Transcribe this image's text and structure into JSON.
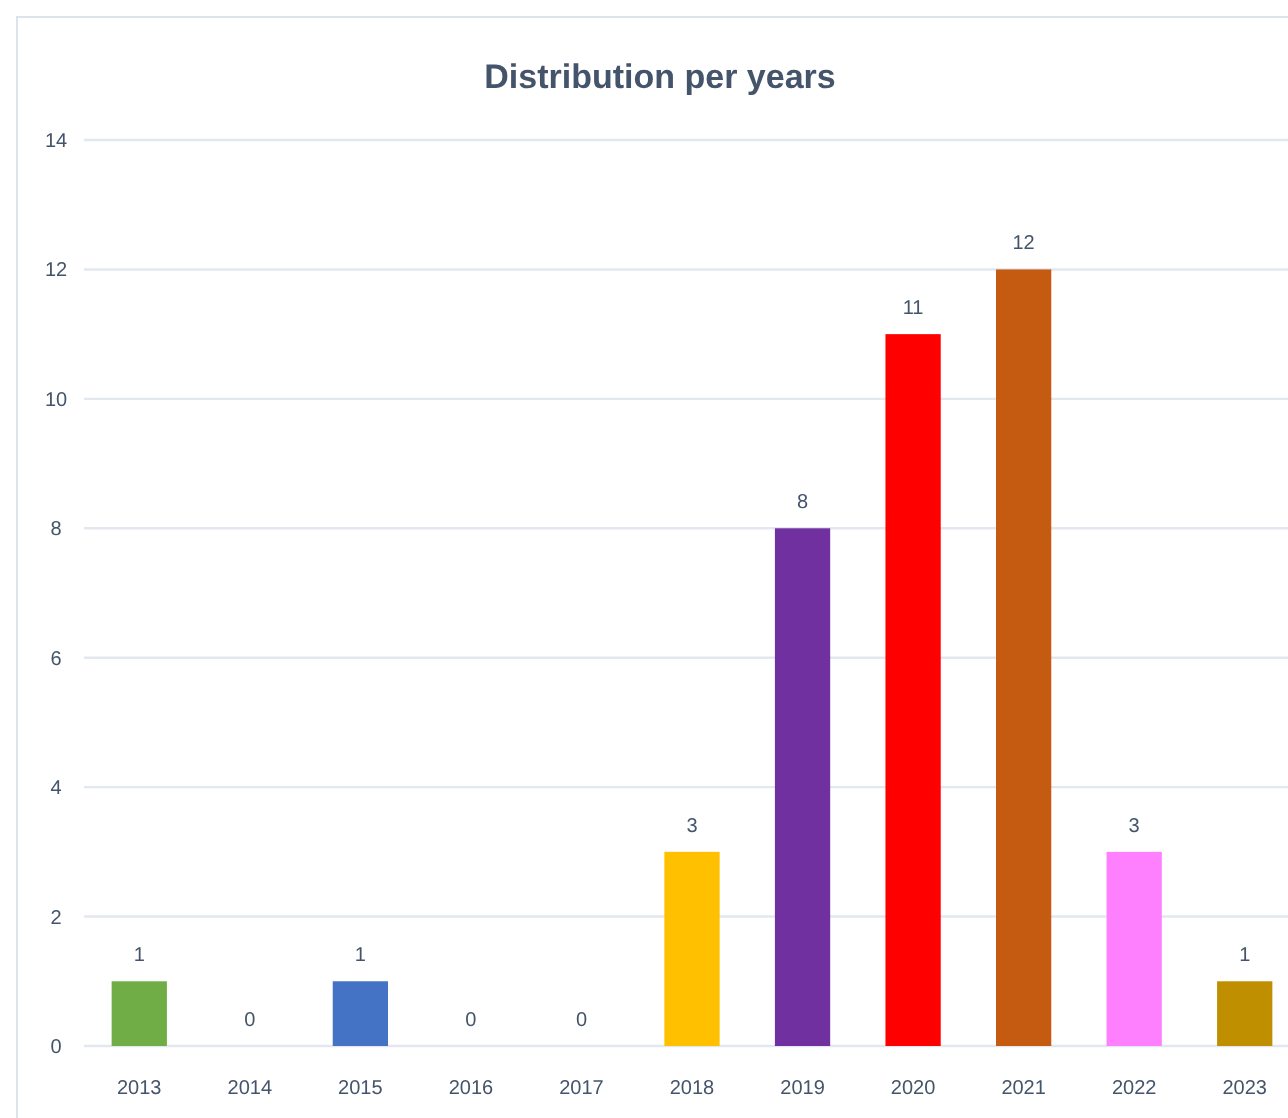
{
  "chart_data": {
    "type": "bar",
    "title": "Distribution per years",
    "categories": [
      "2013",
      "2014",
      "2015",
      "2016",
      "2017",
      "2018",
      "2019",
      "2020",
      "2021",
      "2022",
      "2023"
    ],
    "values": [
      1,
      0,
      1,
      0,
      0,
      3,
      8,
      11,
      12,
      3,
      1
    ],
    "colors": [
      "#70ad47",
      null,
      "#4472c4",
      null,
      null,
      "#ffc000",
      "#7030a0",
      "#ff0000",
      "#c55a11",
      "#ff80ff",
      "#bf8f00"
    ],
    "ylim": [
      0,
      14
    ],
    "yticks": [
      0,
      2,
      4,
      6,
      8,
      10,
      12,
      14
    ],
    "grid": "y",
    "data_labels": true
  }
}
